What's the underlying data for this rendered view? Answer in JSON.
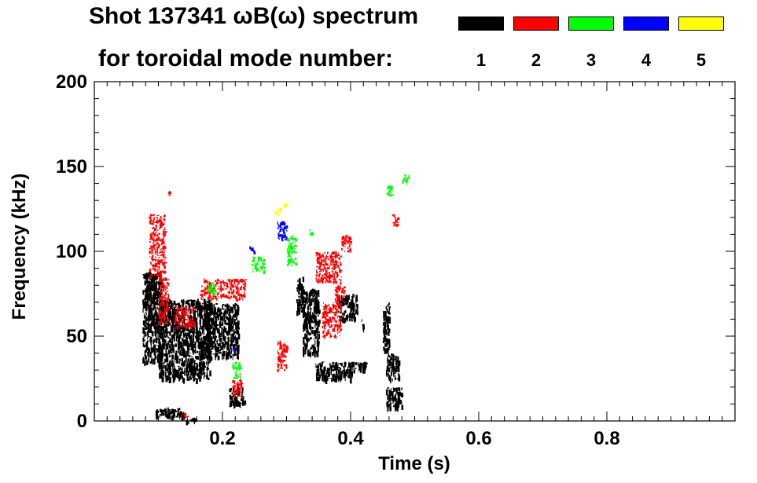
{
  "chart_data": {
    "type": "heatmap",
    "title_line1": "Shot 137341 ωB(ω) spectrum",
    "title_line2": "for toroidal mode number:",
    "xlabel": "Time (s)",
    "ylabel": "Frequency (kHz)",
    "xlim": [
      0.0,
      1.0
    ],
    "ylim": [
      0,
      200
    ],
    "xticks": [
      0.2,
      0.4,
      0.6,
      0.8
    ],
    "xtick_labels": [
      "0.2",
      "0.4",
      "0.6",
      "0.8"
    ],
    "yticks": [
      0,
      50,
      100,
      150,
      200
    ],
    "ytick_labels": [
      "0",
      "50",
      "100",
      "150",
      "200"
    ],
    "legend": [
      {
        "label": "1",
        "color": "#000000"
      },
      {
        "label": "2",
        "color": "#ff0000"
      },
      {
        "label": "3",
        "color": "#00ff00"
      },
      {
        "label": "4",
        "color": "#0000ff"
      },
      {
        "label": "5",
        "color": "#ffff00"
      }
    ],
    "regions": [
      {
        "mode": 1,
        "t": [
          0.075,
          0.105
        ],
        "f": [
          35,
          88
        ]
      },
      {
        "mode": 1,
        "t": [
          0.1,
          0.18
        ],
        "f": [
          25,
          72
        ]
      },
      {
        "mode": 1,
        "t": [
          0.17,
          0.225
        ],
        "f": [
          38,
          70
        ]
      },
      {
        "mode": 1,
        "t": [
          0.21,
          0.235
        ],
        "f": [
          10,
          20
        ]
      },
      {
        "mode": 1,
        "t": [
          0.095,
          0.14
        ],
        "f": [
          3,
          8
        ]
      },
      {
        "mode": 1,
        "t": [
          0.14,
          0.16
        ],
        "f": [
          0,
          2
        ]
      },
      {
        "mode": 1,
        "t": [
          0.315,
          0.325
        ],
        "f": [
          65,
          85
        ]
      },
      {
        "mode": 1,
        "t": [
          0.325,
          0.35
        ],
        "f": [
          40,
          78
        ]
      },
      {
        "mode": 1,
        "t": [
          0.345,
          0.405
        ],
        "f": [
          25,
          35
        ]
      },
      {
        "mode": 1,
        "t": [
          0.405,
          0.425
        ],
        "f": [
          30,
          35
        ]
      },
      {
        "mode": 1,
        "t": [
          0.38,
          0.41
        ],
        "f": [
          60,
          75
        ]
      },
      {
        "mode": 1,
        "t": [
          0.415,
          0.42
        ],
        "f": [
          55,
          60
        ]
      },
      {
        "mode": 1,
        "t": [
          0.45,
          0.46
        ],
        "f": [
          42,
          70
        ]
      },
      {
        "mode": 1,
        "t": [
          0.455,
          0.475
        ],
        "f": [
          25,
          40
        ]
      },
      {
        "mode": 1,
        "t": [
          0.455,
          0.48
        ],
        "f": [
          8,
          20
        ]
      },
      {
        "mode": 2,
        "t": [
          0.085,
          0.11
        ],
        "f": [
          85,
          122
        ]
      },
      {
        "mode": 2,
        "t": [
          0.1,
          0.115
        ],
        "f": [
          58,
          85
        ]
      },
      {
        "mode": 2,
        "t": [
          0.115,
          0.12
        ],
        "f": [
          133,
          137
        ]
      },
      {
        "mode": 2,
        "t": [
          0.125,
          0.155
        ],
        "f": [
          55,
          68
        ]
      },
      {
        "mode": 2,
        "t": [
          0.135,
          0.145
        ],
        "f": [
          2,
          5
        ]
      },
      {
        "mode": 2,
        "t": [
          0.165,
          0.235
        ],
        "f": [
          72,
          84
        ]
      },
      {
        "mode": 2,
        "t": [
          0.215,
          0.23
        ],
        "f": [
          15,
          25
        ]
      },
      {
        "mode": 2,
        "t": [
          0.285,
          0.3
        ],
        "f": [
          30,
          48
        ]
      },
      {
        "mode": 2,
        "t": [
          0.345,
          0.385
        ],
        "f": [
          82,
          100
        ]
      },
      {
        "mode": 2,
        "t": [
          0.355,
          0.385
        ],
        "f": [
          50,
          70
        ]
      },
      {
        "mode": 2,
        "t": [
          0.375,
          0.39
        ],
        "f": [
          70,
          80
        ]
      },
      {
        "mode": 2,
        "t": [
          0.385,
          0.4
        ],
        "f": [
          100,
          110
        ]
      },
      {
        "mode": 2,
        "t": [
          0.465,
          0.475
        ],
        "f": [
          115,
          122
        ]
      },
      {
        "mode": 3,
        "t": [
          0.175,
          0.19
        ],
        "f": [
          75,
          82
        ]
      },
      {
        "mode": 3,
        "t": [
          0.215,
          0.23
        ],
        "f": [
          25,
          35
        ]
      },
      {
        "mode": 3,
        "t": [
          0.245,
          0.265
        ],
        "f": [
          88,
          97
        ]
      },
      {
        "mode": 3,
        "t": [
          0.3,
          0.315
        ],
        "f": [
          92,
          110
        ]
      },
      {
        "mode": 3,
        "t": [
          0.335,
          0.34
        ],
        "f": [
          110,
          113
        ]
      },
      {
        "mode": 3,
        "t": [
          0.455,
          0.465
        ],
        "f": [
          133,
          140
        ]
      },
      {
        "mode": 3,
        "t": [
          0.48,
          0.49
        ],
        "f": [
          140,
          146
        ]
      },
      {
        "mode": 4,
        "t": [
          0.215,
          0.22
        ],
        "f": [
          40,
          45
        ]
      },
      {
        "mode": 4,
        "t": [
          0.24,
          0.25
        ],
        "f": [
          100,
          103
        ]
      },
      {
        "mode": 4,
        "t": [
          0.285,
          0.3
        ],
        "f": [
          107,
          118
        ]
      },
      {
        "mode": 5,
        "t": [
          0.28,
          0.29
        ],
        "f": [
          122,
          126
        ]
      },
      {
        "mode": 5,
        "t": [
          0.295,
          0.3
        ],
        "f": [
          127,
          130
        ]
      }
    ]
  }
}
